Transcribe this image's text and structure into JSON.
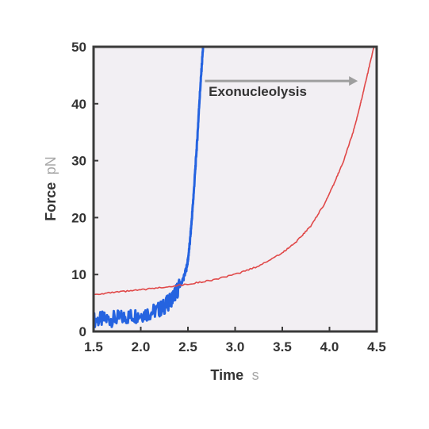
{
  "chart_data": {
    "type": "line",
    "xlabel": "Time",
    "xunit": "s",
    "ylabel": "Force",
    "yunit": "pN",
    "xlim": [
      1.5,
      4.5
    ],
    "ylim": [
      0,
      50
    ],
    "xticks": [
      "1.5",
      "2.0",
      "2.5",
      "3.0",
      "3.5",
      "4.0",
      "4.5"
    ],
    "yticks": [
      "0",
      "10",
      "20",
      "30",
      "40",
      "50"
    ],
    "grid": false,
    "legend": "none",
    "background": "#f2eff3",
    "series": [
      {
        "color": "#2563e0",
        "x": [
          1.5,
          1.6,
          1.7,
          1.8,
          1.9,
          2.0,
          2.1,
          2.2,
          2.25,
          2.3,
          2.35,
          2.4,
          2.45,
          2.48,
          2.5,
          2.52,
          2.54,
          2.56,
          2.58,
          2.6,
          2.62,
          2.64,
          2.66
        ],
        "y": [
          2.0,
          2.1,
          2.2,
          2.4,
          2.7,
          3.0,
          3.3,
          3.9,
          4.4,
          5.2,
          6.3,
          7.6,
          9.2,
          10.8,
          12.5,
          15.5,
          19.5,
          24.0,
          29.0,
          34.0,
          40.0,
          45.0,
          50.0
        ]
      },
      {
        "color": "#e04848",
        "x": [
          1.5,
          1.75,
          2.0,
          2.25,
          2.5,
          2.75,
          3.0,
          3.25,
          3.5,
          3.65,
          3.8,
          3.95,
          4.05,
          4.15,
          4.25,
          4.3,
          4.35,
          4.4,
          4.45,
          4.47
        ],
        "y": [
          6.5,
          6.9,
          7.3,
          7.8,
          8.3,
          9.0,
          10.0,
          11.5,
          13.8,
          15.8,
          18.5,
          22.5,
          26.0,
          30.0,
          35.0,
          38.0,
          41.5,
          45.0,
          48.5,
          50.0
        ]
      }
    ],
    "annotations": [
      {
        "text": "Exonucleolysis",
        "arrow_from": [
          2.68,
          44.0
        ],
        "arrow_to": [
          4.3,
          44.0
        ],
        "text_x": 2.72,
        "text_y": 42.2,
        "arrow_color": "#9e9e9e"
      }
    ]
  }
}
